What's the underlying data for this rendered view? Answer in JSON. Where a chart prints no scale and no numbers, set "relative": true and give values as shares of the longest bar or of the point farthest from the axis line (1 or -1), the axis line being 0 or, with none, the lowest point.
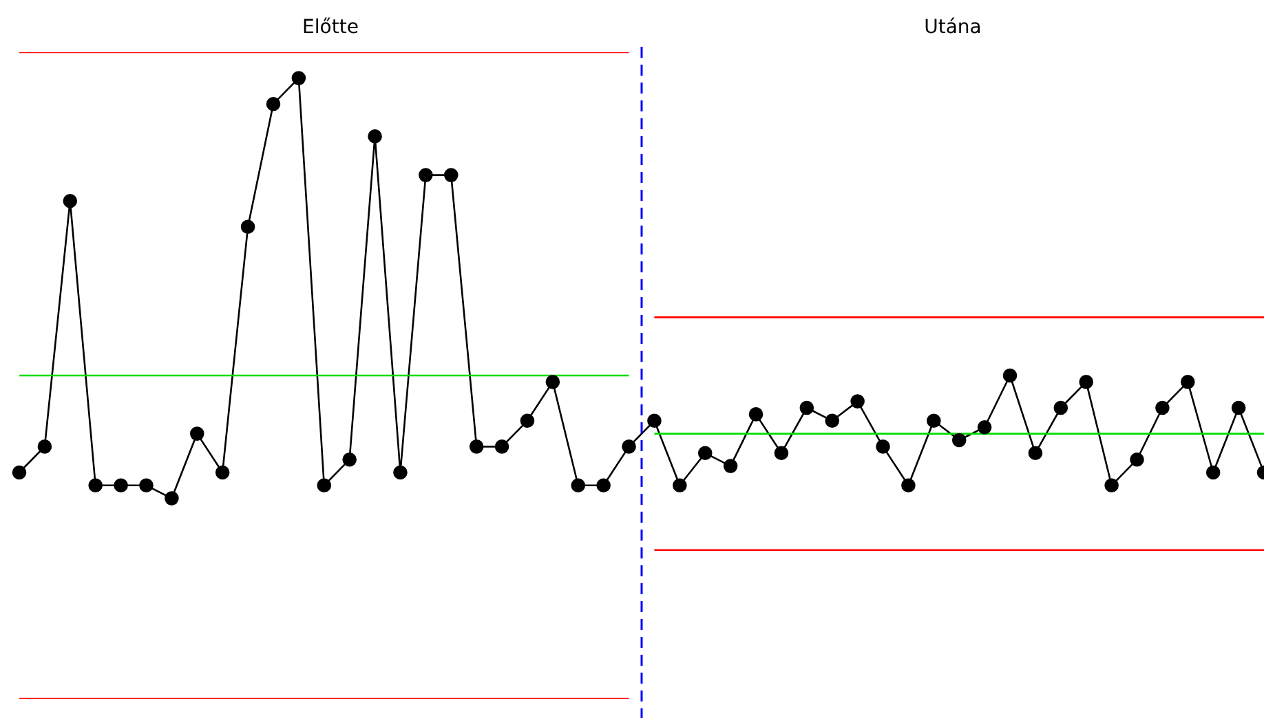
{
  "chart_data": {
    "type": "line",
    "relative": true,
    "marker": "circle",
    "grid": false,
    "legend": false,
    "annotations": [
      "Előtte",
      "Utána"
    ],
    "categories": [
      null,
      null,
      null,
      null,
      null,
      null,
      null,
      null,
      null,
      null,
      null,
      null,
      null,
      null,
      null,
      null,
      null,
      null,
      null,
      null,
      null,
      null,
      null,
      null,
      null,
      null,
      null,
      null,
      null,
      null,
      null,
      null,
      null,
      null,
      null,
      null,
      null,
      null,
      null,
      null,
      null,
      null,
      null,
      null,
      null,
      null,
      null,
      null,
      null,
      null
    ],
    "series": [
      {
        "color": "#000000",
        "values": [
          0.35,
          0.39,
          0.77,
          0.33,
          0.33,
          0.33,
          0.31,
          0.41,
          0.35,
          0.73,
          0.92,
          0.96,
          0.33,
          0.37,
          0.87,
          0.35,
          0.81,
          0.81,
          0.39,
          0.39,
          0.43,
          0.49,
          0.33,
          0.33,
          0.39,
          0.43,
          0.33,
          0.38,
          0.36,
          0.44,
          0.38,
          0.45,
          0.43,
          0.46,
          0.39,
          0.33,
          0.43,
          0.4,
          0.42,
          0.5,
          0.38,
          0.45,
          0.49,
          0.33,
          0.37,
          0.45,
          0.49,
          0.35,
          0.45,
          0.35
        ]
      },
      {
        "color": "#ff0000",
        "marker": "none",
        "values": [
          1,
          1,
          1,
          1,
          1,
          1,
          1,
          1,
          1,
          1,
          1,
          1,
          1,
          1,
          1,
          1,
          1,
          1,
          1,
          1,
          1,
          1,
          1,
          1,
          1,
          null,
          null,
          null,
          null,
          null,
          null,
          null,
          null,
          null,
          null,
          null,
          null,
          null,
          null,
          null,
          null,
          null,
          null,
          null,
          null,
          null,
          null,
          null,
          null,
          null
        ]
      },
      {
        "color": "#00dd00",
        "marker": "none",
        "values": [
          0.5,
          0.5,
          0.5,
          0.5,
          0.5,
          0.5,
          0.5,
          0.5,
          0.5,
          0.5,
          0.5,
          0.5,
          0.5,
          0.5,
          0.5,
          0.5,
          0.5,
          0.5,
          0.5,
          0.5,
          0.5,
          0.5,
          0.5,
          0.5,
          0.5,
          null,
          null,
          null,
          null,
          null,
          null,
          null,
          null,
          null,
          null,
          null,
          null,
          null,
          null,
          null,
          null,
          null,
          null,
          null,
          null,
          null,
          null,
          null,
          null,
          null
        ]
      },
      {
        "color": "#ff0000",
        "marker": "none",
        "values": [
          0,
          0,
          0,
          0,
          0,
          0,
          0,
          0,
          0,
          0,
          0,
          0,
          0,
          0,
          0,
          0,
          0,
          0,
          0,
          0,
          0,
          0,
          0,
          0,
          0,
          null,
          null,
          null,
          null,
          null,
          null,
          null,
          null,
          null,
          null,
          null,
          null,
          null,
          null,
          null,
          null,
          null,
          null,
          null,
          null,
          null,
          null,
          null,
          null,
          null
        ]
      },
      {
        "color": "#ff0000",
        "marker": "none",
        "values": [
          null,
          null,
          null,
          null,
          null,
          null,
          null,
          null,
          null,
          null,
          null,
          null,
          null,
          null,
          null,
          null,
          null,
          null,
          null,
          null,
          null,
          null,
          null,
          null,
          null,
          0.59,
          0.59,
          0.59,
          0.59,
          0.59,
          0.59,
          0.59,
          0.59,
          0.59,
          0.59,
          0.59,
          0.59,
          0.59,
          0.59,
          0.59,
          0.59,
          0.59,
          0.59,
          0.59,
          0.59,
          0.59,
          0.59,
          0.59,
          0.59,
          0.59
        ]
      },
      {
        "color": "#00dd00",
        "marker": "none",
        "values": [
          null,
          null,
          null,
          null,
          null,
          null,
          null,
          null,
          null,
          null,
          null,
          null,
          null,
          null,
          null,
          null,
          null,
          null,
          null,
          null,
          null,
          null,
          null,
          null,
          null,
          0.41,
          0.41,
          0.41,
          0.41,
          0.41,
          0.41,
          0.41,
          0.41,
          0.41,
          0.41,
          0.41,
          0.41,
          0.41,
          0.41,
          0.41,
          0.41,
          0.41,
          0.41,
          0.41,
          0.41,
          0.41,
          0.41,
          0.41,
          0.41,
          0.41
        ]
      },
      {
        "color": "#ff0000",
        "marker": "none",
        "values": [
          null,
          null,
          null,
          null,
          null,
          null,
          null,
          null,
          null,
          null,
          null,
          null,
          null,
          null,
          null,
          null,
          null,
          null,
          null,
          null,
          null,
          null,
          null,
          null,
          null,
          0.23,
          0.23,
          0.23,
          0.23,
          0.23,
          0.23,
          0.23,
          0.23,
          0.23,
          0.23,
          0.23,
          0.23,
          0.23,
          0.23,
          0.23,
          0.23,
          0.23,
          0.23,
          0.23,
          0.23,
          0.23,
          0.23,
          0.23,
          0.23,
          0.23
        ]
      }
    ]
  }
}
